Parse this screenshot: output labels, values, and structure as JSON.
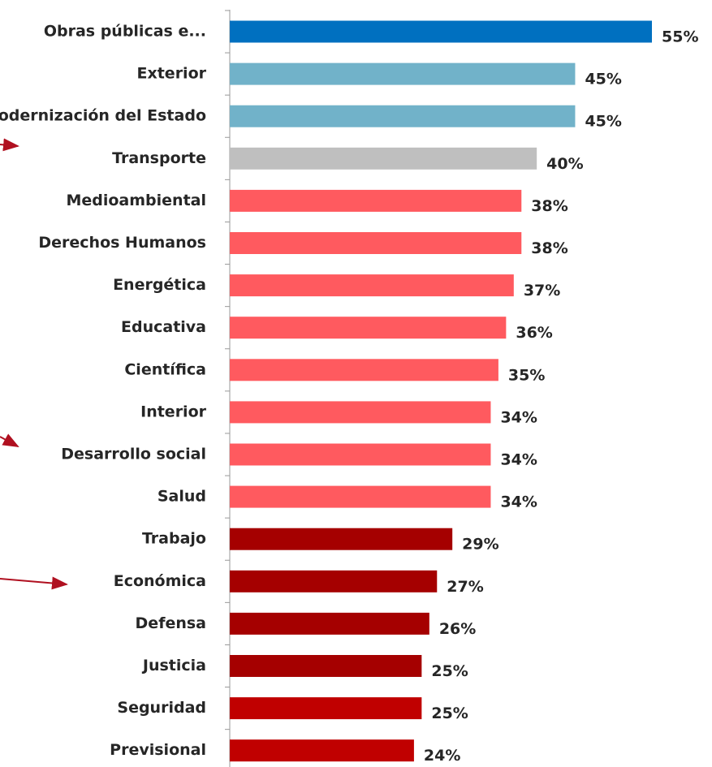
{
  "chart_data": {
    "type": "barh",
    "categories": [
      "Obras públicas e...",
      "Exterior",
      "Modernización del Estado",
      "Transporte",
      "Medioambiental",
      "Derechos Humanos",
      "Energética",
      "Educativa",
      "Científica",
      "Interior",
      "Desarrollo social",
      "Salud",
      "Trabajo",
      "Económica",
      "Defensa",
      "Justicia",
      "Seguridad",
      "Previsional"
    ],
    "values": [
      55,
      45,
      45,
      40,
      38,
      38,
      37,
      36,
      35,
      34,
      34,
      34,
      29,
      27,
      26,
      25,
      25,
      24
    ],
    "value_labels": [
      "55%",
      "45%",
      "45%",
      "40%",
      "38%",
      "38%",
      "37%",
      "36%",
      "35%",
      "34%",
      "34%",
      "34%",
      "29%",
      "27%",
      "26%",
      "25%",
      "25%",
      "24%"
    ],
    "colors": [
      "#0070c0",
      "#71b2c9",
      "#71b2c9",
      "#bfbfbf",
      "#ff5a5f",
      "#ff5a5f",
      "#ff5a5f",
      "#ff5a5f",
      "#ff5a5f",
      "#ff5a5f",
      "#ff5a5f",
      "#ff5a5f",
      "#a50000",
      "#a50000",
      "#a50000",
      "#a50000",
      "#c00000",
      "#c00000"
    ],
    "xlim": [
      0,
      55
    ]
  }
}
